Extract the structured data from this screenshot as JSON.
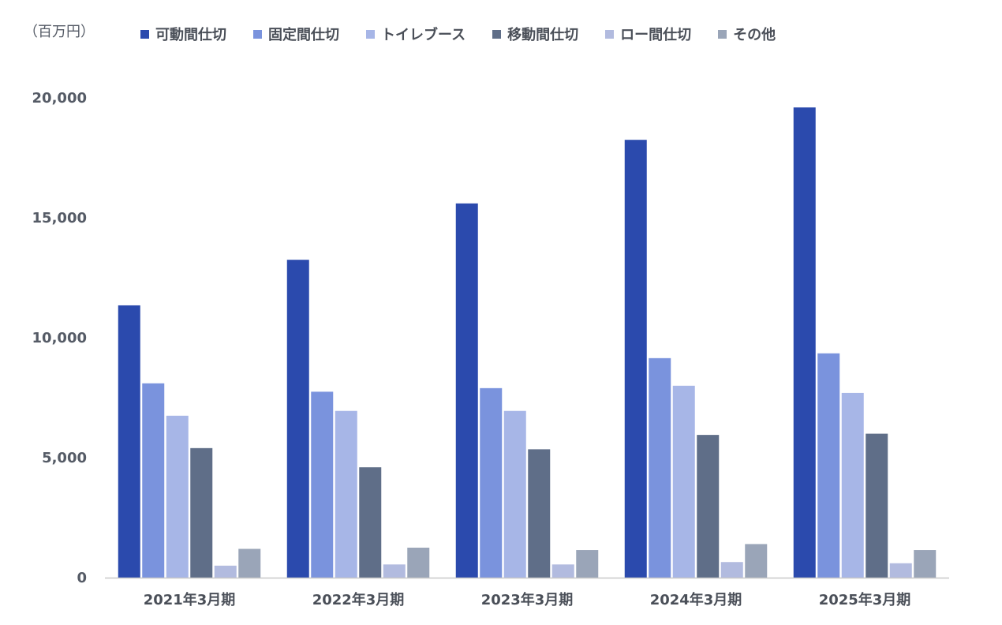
{
  "chart_data": {
    "type": "bar",
    "unit_label": "（百万円）",
    "categories": [
      "2021年3月期",
      "2022年3月期",
      "2023年3月期",
      "2024年3月期",
      "2025年3月期"
    ],
    "series": [
      {
        "name": "可動間仕切",
        "color": "#2b4aad",
        "values": [
          11350,
          13250,
          15600,
          18250,
          19600
        ]
      },
      {
        "name": "固定間仕切",
        "color": "#7a93dd",
        "values": [
          8100,
          7750,
          7900,
          9150,
          9350
        ]
      },
      {
        "name": "トイレブース",
        "color": "#a7b6e7",
        "values": [
          6750,
          6950,
          6950,
          8000,
          7700
        ]
      },
      {
        "name": "移動間仕切",
        "color": "#5f6e88",
        "values": [
          5400,
          4600,
          5350,
          5950,
          6000
        ]
      },
      {
        "name": "ロー間仕切",
        "color": "#b2bbdf",
        "values": [
          500,
          550,
          550,
          650,
          600
        ]
      },
      {
        "name": "その他",
        "color": "#9aa5b8",
        "values": [
          1200,
          1250,
          1150,
          1400,
          1150
        ]
      }
    ],
    "yticks": [
      "0",
      "5,000",
      "10,000",
      "15,000",
      "20,000"
    ],
    "ytick_values": [
      0,
      5000,
      10000,
      15000,
      20000
    ],
    "ylim": [
      0,
      20000
    ],
    "grid": false,
    "legend_position": "top"
  }
}
